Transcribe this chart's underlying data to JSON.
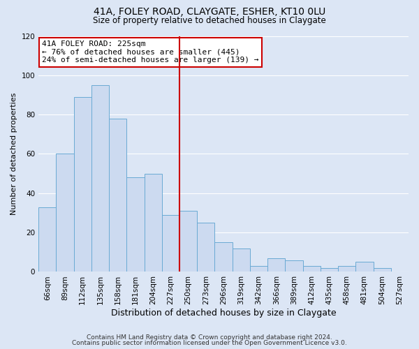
{
  "title": "41A, FOLEY ROAD, CLAYGATE, ESHER, KT10 0LU",
  "subtitle": "Size of property relative to detached houses in Claygate",
  "xlabel": "Distribution of detached houses by size in Claygate",
  "ylabel": "Number of detached properties",
  "bins": [
    "66sqm",
    "89sqm",
    "112sqm",
    "135sqm",
    "158sqm",
    "181sqm",
    "204sqm",
    "227sqm",
    "250sqm",
    "273sqm",
    "296sqm",
    "319sqm",
    "342sqm",
    "366sqm",
    "389sqm",
    "412sqm",
    "435sqm",
    "458sqm",
    "481sqm",
    "504sqm",
    "527sqm"
  ],
  "values": [
    33,
    60,
    89,
    95,
    78,
    48,
    50,
    29,
    31,
    25,
    15,
    12,
    3,
    7,
    6,
    3,
    2,
    3,
    5,
    2,
    0
  ],
  "bar_color": "#ccdaf0",
  "bar_edge_color": "#6aaad4",
  "vline_color": "#cc0000",
  "vline_label": "41A FOLEY ROAD: 225sqm",
  "annotation_line1": "← 76% of detached houses are smaller (445)",
  "annotation_line2": "24% of semi-detached houses are larger (139) →",
  "ylim": [
    0,
    120
  ],
  "yticks": [
    0,
    20,
    40,
    60,
    80,
    100,
    120
  ],
  "footer1": "Contains HM Land Registry data © Crown copyright and database right 2024.",
  "footer2": "Contains public sector information licensed under the Open Government Licence v3.0.",
  "background_color": "#dce6f5",
  "grid_color": "#ffffff",
  "bar_width": 1.0
}
